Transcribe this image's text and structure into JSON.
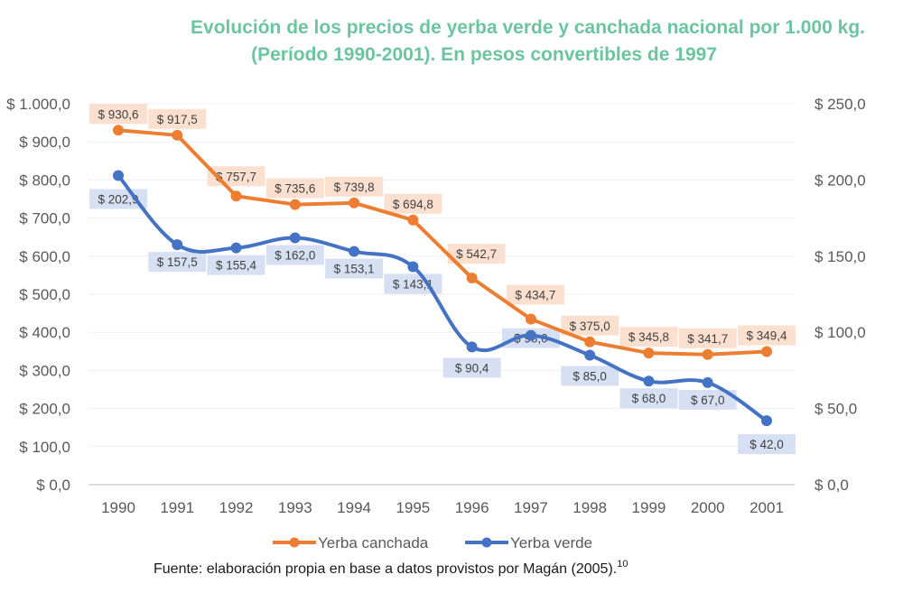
{
  "chart_data": {
    "type": "line",
    "title": "Evolución de los precios de yerba verde y canchada nacional por 1.000 kg.",
    "subtitle": "(Período 1990-2001). En pesos convertibles de 1997",
    "categories": [
      "1990",
      "1991",
      "1992",
      "1993",
      "1994",
      "1995",
      "1996",
      "1997",
      "1998",
      "1999",
      "2000",
      "2001"
    ],
    "y_left": {
      "range": [
        0,
        1000
      ],
      "ticks": [
        0,
        100,
        200,
        300,
        400,
        500,
        600,
        700,
        800,
        900,
        1000
      ],
      "tick_labels": [
        "$ 0,0",
        "$ 100,0",
        "$ 200,0",
        "$ 300,0",
        "$ 400,0",
        "$ 500,0",
        "$ 600,0",
        "$ 700,0",
        "$ 800,0",
        "$ 900,0",
        "$ 1.000,0"
      ]
    },
    "y_right": {
      "range": [
        0,
        250
      ],
      "ticks": [
        0,
        50,
        100,
        150,
        200,
        250
      ],
      "tick_labels": [
        "$ 0,0",
        "$ 50,0",
        "$ 100,0",
        "$ 150,0",
        "$ 200,0",
        "$ 250,0"
      ]
    },
    "grid": true,
    "legend_position": "bottom",
    "series": [
      {
        "name": "Yerba canchada",
        "axis": "left",
        "color": "#ed7d31",
        "label_bg": "#fbe0d0",
        "smooth": false,
        "values": [
          930.6,
          917.5,
          757.7,
          735.6,
          739.8,
          694.8,
          542.7,
          434.7,
          375.0,
          345.8,
          341.7,
          349.4
        ],
        "labels": [
          "$ 930,6",
          "$ 917,5",
          "$ 757,7",
          "$ 735,6",
          "$ 739,8",
          "$ 694,8",
          "$ 542,7",
          "$ 434,7",
          "$ 375,0",
          "$ 345,8",
          "$ 341,7",
          "$ 349,4"
        ]
      },
      {
        "name": "Yerba verde",
        "axis": "right",
        "color": "#4472c4",
        "label_bg": "#d6e0f2",
        "smooth": true,
        "values": [
          202.9,
          157.5,
          155.4,
          162.0,
          153.1,
          143.1,
          90.4,
          98.0,
          85.0,
          68.0,
          67.0,
          42.0
        ],
        "labels": [
          "$ 202,9",
          "$ 157,5",
          "$ 155,4",
          "$ 162,0",
          "$ 153,1",
          "$ 143,1",
          "$ 90,4",
          "$ 98,0",
          "$ 85,0",
          "$ 68,0",
          "$ 67,0",
          "$ 42,0"
        ]
      }
    ]
  },
  "source": {
    "text": "Fuente: elaboración propia en base a datos provistos por Magán (2005).",
    "footnote": "10"
  }
}
